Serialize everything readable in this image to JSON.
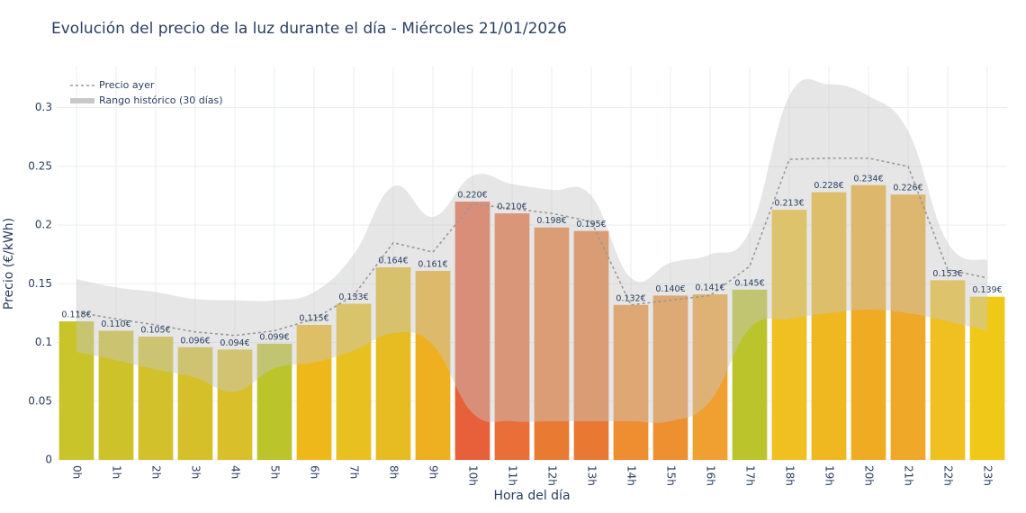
{
  "chart_data": {
    "type": "bar",
    "title": "Evolución del precio de la luz durante el día - Miércoles 21/01/2026",
    "x_label": "Hora del día",
    "y_label": "Precio (€/kWh)",
    "categories": [
      "0h",
      "1h",
      "2h",
      "3h",
      "4h",
      "5h",
      "6h",
      "7h",
      "8h",
      "9h",
      "10h",
      "11h",
      "12h",
      "13h",
      "14h",
      "15h",
      "16h",
      "17h",
      "18h",
      "19h",
      "20h",
      "21h",
      "22h",
      "23h"
    ],
    "values": [
      0.118,
      0.11,
      0.105,
      0.096,
      0.094,
      0.099,
      0.115,
      0.133,
      0.164,
      0.161,
      0.22,
      0.21,
      0.198,
      0.195,
      0.132,
      0.14,
      0.141,
      0.145,
      0.213,
      0.228,
      0.234,
      0.226,
      0.153,
      0.139
    ],
    "value_labels": [
      "0.118€",
      "0.110€",
      "0.105€",
      "0.096€",
      "0.094€",
      "0.099€",
      "0.115€",
      "0.133€",
      "0.164€",
      "0.161€",
      "0.220€",
      "0.210€",
      "0.198€",
      "0.195€",
      "0.132€",
      "0.140€",
      "0.141€",
      "0.145€",
      "0.213€",
      "0.228€",
      "0.234€",
      "0.226€",
      "0.153€",
      "0.139€"
    ],
    "colors": [
      "#c9c42a",
      "#cdc22a",
      "#d2c12a",
      "#d6c02a",
      "#d9bf2a",
      "#bcc42c",
      "#efb81a",
      "#e8c020",
      "#e6bc22",
      "#eeb020",
      "#e8603a",
      "#e96e38",
      "#e97a32",
      "#e97832",
      "#ef8e30",
      "#ef9030",
      "#efa030",
      "#bcc42c",
      "#efc020",
      "#efb820",
      "#efac22",
      "#efa828",
      "#efc020",
      "#efc818"
    ],
    "ylim": [
      0,
      0.335
    ],
    "yticks": [
      0,
      0.05,
      0.1,
      0.15,
      0.2,
      0.25,
      0.3
    ],
    "grid": true,
    "legend": "top-left",
    "series": [
      {
        "name": "Precio ayer",
        "type": "line",
        "color": "#999999",
        "values": [
          0.126,
          0.12,
          0.115,
          0.109,
          0.106,
          0.11,
          0.12,
          0.14,
          0.185,
          0.177,
          0.218,
          0.214,
          0.21,
          0.203,
          0.132,
          0.136,
          0.14,
          0.165,
          0.256,
          0.257,
          0.257,
          0.25,
          0.162,
          0.155
        ]
      },
      {
        "name": "Rango histórico (30 días)",
        "type": "band",
        "color": "#c8c8c8",
        "upper": [
          0.154,
          0.147,
          0.143,
          0.137,
          0.136,
          0.136,
          0.143,
          0.175,
          0.233,
          0.207,
          0.242,
          0.235,
          0.23,
          0.225,
          0.155,
          0.168,
          0.175,
          0.195,
          0.31,
          0.32,
          0.31,
          0.28,
          0.185,
          0.17
        ],
        "lower": [
          0.092,
          0.085,
          0.077,
          0.07,
          0.058,
          0.078,
          0.083,
          0.093,
          0.108,
          0.098,
          0.04,
          0.033,
          0.033,
          0.033,
          0.033,
          0.033,
          0.05,
          0.112,
          0.12,
          0.125,
          0.128,
          0.125,
          0.118,
          0.11
        ]
      }
    ]
  }
}
